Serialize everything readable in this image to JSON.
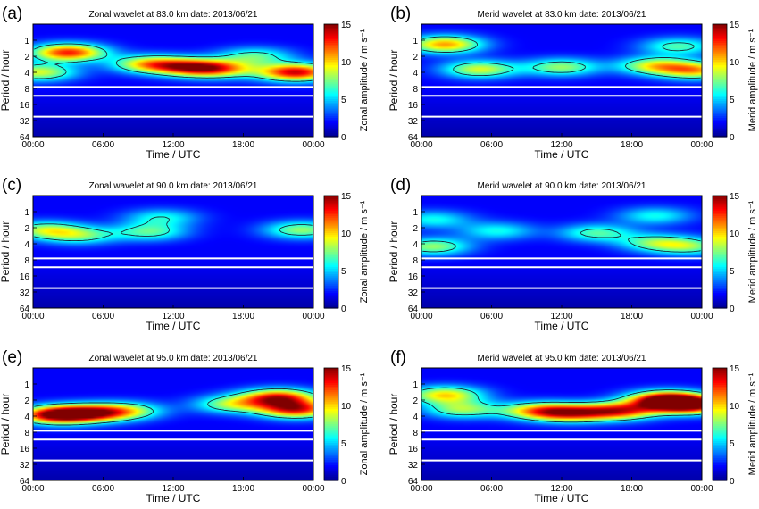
{
  "figure": {
    "time_label": "Time / UTC",
    "period_label": "Period / hour",
    "x_ticks": [
      "00:00",
      "06:00",
      "12:00",
      "18:00",
      "00:00"
    ],
    "y_ticks": [
      "1",
      "2",
      "4",
      "8",
      "16",
      "32",
      "64"
    ],
    "cbar_ticks": [
      "0",
      "5",
      "10",
      "15"
    ],
    "cbar_label_zonal": "Zonal amplitude / m s⁻¹",
    "cbar_label_merid": "Merid amplitude / m s⁻¹",
    "colormap": [
      "#00008f",
      "#0000ff",
      "#0080ff",
      "#00ffff",
      "#80ff80",
      "#ffff00",
      "#ff8000",
      "#ff0000",
      "#800000"
    ]
  },
  "chart_data": [
    {
      "type": "heatmap",
      "panel": "(a)",
      "title": "Zonal wavelet at 83.0 km date: 2013/06/21",
      "component": "zonal",
      "altitude_km": 83.0,
      "date": "2013/06/21",
      "xlabel": "Time / UTC",
      "ylabel": "Period / hour",
      "xlim": [
        "00:00",
        "24:00"
      ],
      "ylim_hours": [
        0.5,
        64
      ],
      "y_scale": "log2",
      "y_inverted": true,
      "clim": [
        0,
        15
      ],
      "colorbar_label": "Zonal amplitude / m s⁻¹",
      "white_lines_hours": [
        7.5,
        11,
        27
      ],
      "peaks": [
        {
          "time_h": 3.0,
          "period_h": 1.7,
          "amp": 11
        },
        {
          "time_h": 0.5,
          "period_h": 4.0,
          "amp": 7
        },
        {
          "time_h": 10.0,
          "period_h": 2.8,
          "amp": 8
        },
        {
          "time_h": 13.5,
          "period_h": 3.2,
          "amp": 9
        },
        {
          "time_h": 16.0,
          "period_h": 3.5,
          "amp": 7
        },
        {
          "time_h": 22.5,
          "period_h": 4.0,
          "amp": 12
        },
        {
          "time_h": 19.0,
          "period_h": 2.0,
          "amp": 5
        }
      ]
    },
    {
      "type": "heatmap",
      "panel": "(b)",
      "title": "Merid wavelet at 83.0 km date: 2013/06/21",
      "component": "merid",
      "altitude_km": 83.0,
      "date": "2013/06/21",
      "xlabel": "Time / UTC",
      "ylabel": "Period / hour",
      "xlim": [
        "00:00",
        "24:00"
      ],
      "ylim_hours": [
        0.5,
        64
      ],
      "y_scale": "log2",
      "y_inverted": true,
      "clim": [
        0,
        15
      ],
      "colorbar_label": "Merid amplitude / m s⁻¹",
      "white_lines_hours": [
        7.5,
        11,
        27
      ],
      "peaks": [
        {
          "time_h": 2.0,
          "period_h": 1.2,
          "amp": 9
        },
        {
          "time_h": 5.0,
          "period_h": 3.5,
          "amp": 7
        },
        {
          "time_h": 12.0,
          "period_h": 3.2,
          "amp": 6
        },
        {
          "time_h": 20.0,
          "period_h": 3.0,
          "amp": 7
        },
        {
          "time_h": 23.5,
          "period_h": 3.7,
          "amp": 8
        },
        {
          "time_h": 22.0,
          "period_h": 1.3,
          "amp": 5
        }
      ]
    },
    {
      "type": "heatmap",
      "panel": "(c)",
      "title": "Zonal wavelet at 90.0 km date: 2013/06/21",
      "component": "zonal",
      "altitude_km": 90.0,
      "date": "2013/06/21",
      "xlabel": "Time / UTC",
      "ylabel": "Period / hour",
      "xlim": [
        "00:00",
        "24:00"
      ],
      "ylim_hours": [
        0.5,
        64
      ],
      "y_scale": "log2",
      "y_inverted": true,
      "clim": [
        0,
        15
      ],
      "colorbar_label": "Zonal amplitude / m s⁻¹",
      "white_lines_hours": [
        7.5,
        11,
        27
      ],
      "peaks": [
        {
          "time_h": 1.0,
          "period_h": 2.2,
          "amp": 6
        },
        {
          "time_h": 4.0,
          "period_h": 2.8,
          "amp": 5
        },
        {
          "time_h": 10.0,
          "period_h": 2.4,
          "amp": 5
        },
        {
          "time_h": 11.0,
          "period_h": 1.3,
          "amp": 4
        },
        {
          "time_h": 23.0,
          "period_h": 2.2,
          "amp": 6
        }
      ]
    },
    {
      "type": "heatmap",
      "panel": "(d)",
      "title": "Merid wavelet at 90.0 km date: 2013/06/21",
      "component": "merid",
      "altitude_km": 90.0,
      "date": "2013/06/21",
      "xlabel": "Time / UTC",
      "ylabel": "Period / hour",
      "xlim": [
        "00:00",
        "24:00"
      ],
      "ylim_hours": [
        0.5,
        64
      ],
      "y_scale": "log2",
      "y_inverted": true,
      "clim": [
        0,
        15
      ],
      "colorbar_label": "Merid amplitude / m s⁻¹",
      "white_lines_hours": [
        7.5,
        11,
        27
      ],
      "peaks": [
        {
          "time_h": 1.0,
          "period_h": 4.5,
          "amp": 6
        },
        {
          "time_h": 1.0,
          "period_h": 1.4,
          "amp": 4
        },
        {
          "time_h": 6.5,
          "period_h": 2.3,
          "amp": 4
        },
        {
          "time_h": 15.0,
          "period_h": 2.5,
          "amp": 5
        },
        {
          "time_h": 20.0,
          "period_h": 3.8,
          "amp": 5
        },
        {
          "time_h": 23.0,
          "period_h": 4.5,
          "amp": 5
        },
        {
          "time_h": 20.0,
          "period_h": 1.2,
          "amp": 4
        }
      ]
    },
    {
      "type": "heatmap",
      "panel": "(e)",
      "title": "Zonal wavelet at 95.0 km date: 2013/06/21",
      "component": "zonal",
      "altitude_km": 95.0,
      "date": "2013/06/21",
      "xlabel": "Time / UTC",
      "ylabel": "Period / hour",
      "xlim": [
        "00:00",
        "24:00"
      ],
      "ylim_hours": [
        0.5,
        64
      ],
      "y_scale": "log2",
      "y_inverted": true,
      "clim": [
        0,
        15
      ],
      "colorbar_label": "Zonal amplitude / m s⁻¹",
      "white_lines_hours": [
        7.5,
        11,
        27
      ],
      "peaks": [
        {
          "time_h": 2.0,
          "period_h": 3.8,
          "amp": 13
        },
        {
          "time_h": 5.0,
          "period_h": 3.5,
          "amp": 9
        },
        {
          "time_h": 8.0,
          "period_h": 3.2,
          "amp": 6
        },
        {
          "time_h": 21.0,
          "period_h": 1.8,
          "amp": 11
        },
        {
          "time_h": 22.5,
          "period_h": 3.0,
          "amp": 11
        },
        {
          "time_h": 17.0,
          "period_h": 2.4,
          "amp": 6
        }
      ]
    },
    {
      "type": "heatmap",
      "panel": "(f)",
      "title": "Merid wavelet at 95.0 km date: 2013/06/21",
      "component": "merid",
      "altitude_km": 95.0,
      "date": "2013/06/21",
      "xlabel": "Time / UTC",
      "ylabel": "Period / hour",
      "xlim": [
        "00:00",
        "24:00"
      ],
      "ylim_hours": [
        0.5,
        64
      ],
      "y_scale": "log2",
      "y_inverted": true,
      "clim": [
        0,
        15
      ],
      "colorbar_label": "Merid amplitude / m s⁻¹",
      "white_lines_hours": [
        7.5,
        11,
        27
      ],
      "peaks": [
        {
          "time_h": 2.0,
          "period_h": 1.6,
          "amp": 8
        },
        {
          "time_h": 3.5,
          "period_h": 3.0,
          "amp": 6
        },
        {
          "time_h": 10.0,
          "period_h": 3.2,
          "amp": 8
        },
        {
          "time_h": 13.0,
          "period_h": 3.5,
          "amp": 9
        },
        {
          "time_h": 17.0,
          "period_h": 3.2,
          "amp": 10
        },
        {
          "time_h": 21.0,
          "period_h": 2.0,
          "amp": 14
        },
        {
          "time_h": 23.0,
          "period_h": 2.5,
          "amp": 12
        }
      ]
    }
  ]
}
